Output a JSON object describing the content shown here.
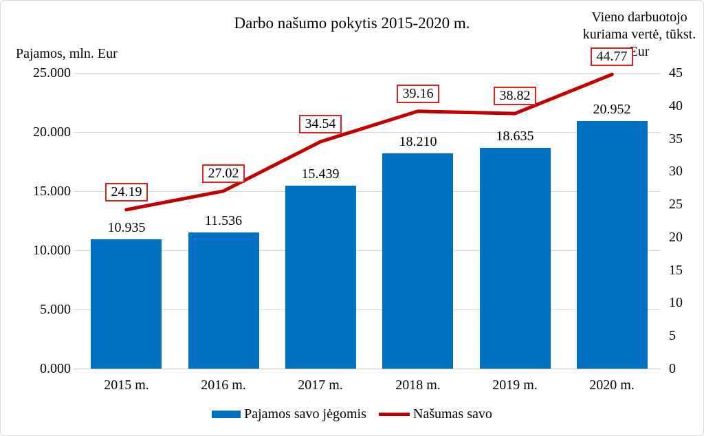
{
  "figure": {
    "background": "#FFFFFF",
    "border_color": "#D9D9D9"
  },
  "chart_data": {
    "type": "bar",
    "subtype": "combo-bar-line",
    "title": "Darbo našumo pokytis 2015-2020 m.",
    "categories": [
      "2015 m.",
      "2016 m.",
      "2017 m.",
      "2018 m.",
      "2019 m.",
      "2020 m."
    ],
    "series": [
      {
        "name": "Pajamos savo jėgomis",
        "type": "bar",
        "axis": "left",
        "color": "#0070C0",
        "values": [
          10.935,
          11.536,
          15.439,
          18.21,
          18.635,
          20.952
        ],
        "data_labels": [
          "10.935",
          "11.536",
          "15.439",
          "18.210",
          "18.635",
          "20.952"
        ]
      },
      {
        "name": "Našumas savo",
        "type": "line",
        "axis": "right",
        "color": "#C00000",
        "label_box_border": "#E02020",
        "values": [
          24.19,
          27.02,
          34.54,
          39.16,
          38.82,
          44.77
        ],
        "data_labels": [
          "24.19",
          "27.02",
          "34.54",
          "39.16",
          "38.82",
          "44.77"
        ]
      }
    ],
    "left_axis": {
      "title": "Pajamos, mln. Eur",
      "min": 0,
      "max": 25,
      "step": 5,
      "tick_labels": [
        "0.000",
        "5.000",
        "10.000",
        "15.000",
        "20.000",
        "25.000"
      ]
    },
    "right_axis": {
      "title_lines": [
        "Vieno darbuotojo",
        "kuriama vertė, tūkst.",
        "Eur"
      ],
      "min": 0,
      "max": 45,
      "step": 5,
      "tick_labels": [
        "0",
        "5",
        "10",
        "15",
        "20",
        "25",
        "30",
        "35",
        "40",
        "45"
      ]
    },
    "grid": true,
    "grid_color": "#D9D9D9",
    "axis_line_color": "#BFBFBF",
    "legend_position": "bottom",
    "ylim_left": [
      0,
      25
    ],
    "ylim_right": [
      0,
      45
    ]
  }
}
